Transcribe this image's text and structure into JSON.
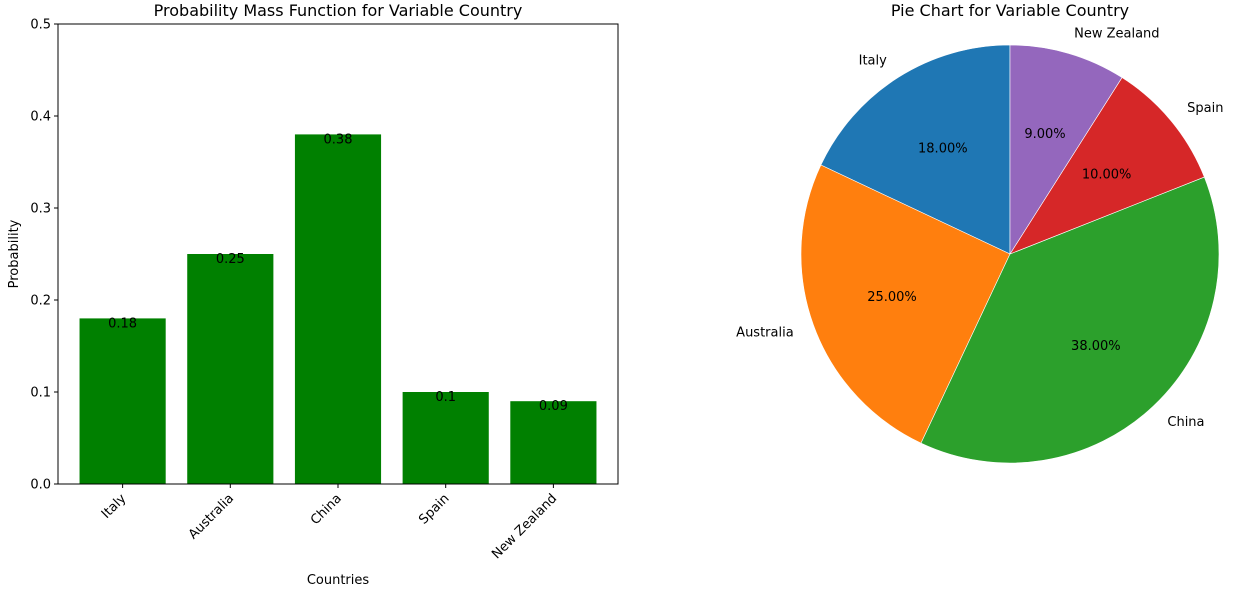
{
  "chart_data": [
    {
      "type": "bar",
      "title": "Probability Mass Function for Variable Country",
      "xlabel": "Countries",
      "ylabel": "Probability",
      "categories": [
        "Italy",
        "Australia",
        "China",
        "Spain",
        "New Zealand"
      ],
      "values": [
        0.18,
        0.25,
        0.38,
        0.1,
        0.09
      ],
      "value_labels": [
        "0.18",
        "0.25",
        "0.38",
        "0.1",
        "0.09"
      ],
      "ylim": [
        0,
        0.5
      ],
      "yticks": [
        0.0,
        0.1,
        0.2,
        0.3,
        0.4,
        0.5
      ],
      "ytick_labels": [
        "0.0",
        "0.1",
        "0.2",
        "0.3",
        "0.4",
        "0.5"
      ],
      "bar_color": "#008000",
      "grid": false
    },
    {
      "type": "pie",
      "title": "Pie Chart for Variable Country",
      "labels": [
        "Italy",
        "Australia",
        "China",
        "Spain",
        "New Zealand"
      ],
      "values": [
        18,
        25,
        38,
        10,
        9
      ],
      "percent_labels": [
        "18.00%",
        "25.00%",
        "38.00%",
        "10.00%",
        "9.00%"
      ],
      "colors": [
        "#1f77b4",
        "#ff7f0e",
        "#2ca02c",
        "#d62728",
        "#9467bd"
      ],
      "start_angle_deg": 90,
      "direction": "counterclockwise"
    }
  ]
}
